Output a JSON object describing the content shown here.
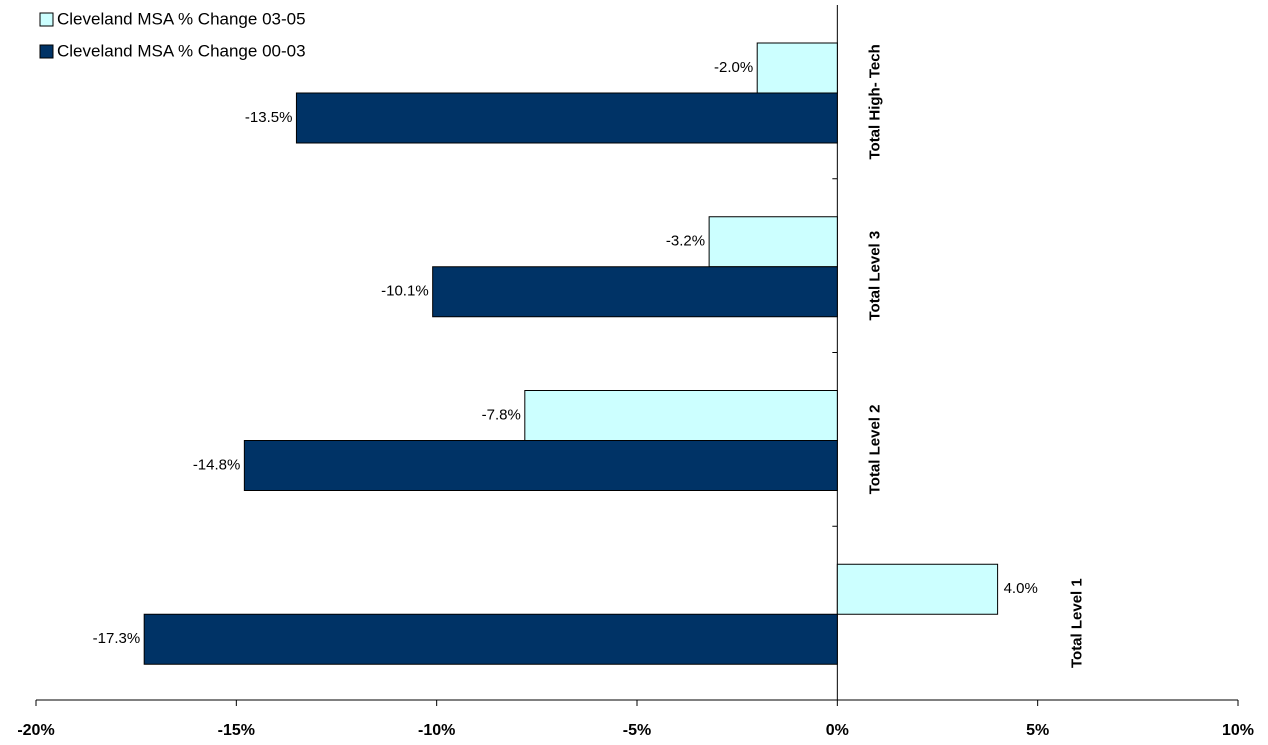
{
  "chart_data": {
    "type": "bar",
    "orientation": "horizontal",
    "categories": [
      "Total High- Tech",
      "Total Level 3",
      "Total Level 2",
      "Total Level 1"
    ],
    "series": [
      {
        "name": "Cleveland MSA % Change 03-05",
        "color": "#ccffff",
        "values": [
          -2.0,
          -3.2,
          -7.8,
          4.0
        ],
        "value_labels": [
          "-2.0%",
          "-3.2%",
          "-7.8%",
          "4.0%"
        ]
      },
      {
        "name": "Cleveland MSA % Change 00-03",
        "color": "#003366",
        "values": [
          -13.5,
          -10.1,
          -14.8,
          -17.3
        ],
        "value_labels": [
          "-13.5%",
          "-10.1%",
          "-14.8%",
          "-17.3%"
        ]
      }
    ],
    "xlim": [
      -20,
      10
    ],
    "xticks": [
      {
        "value": -20,
        "label": "-20%"
      },
      {
        "value": -15,
        "label": "-15%"
      },
      {
        "value": -10,
        "label": "-10%"
      },
      {
        "value": -5,
        "label": "-5%"
      },
      {
        "value": 0,
        "label": "0%"
      },
      {
        "value": 5,
        "label": "5%"
      },
      {
        "value": 10,
        "label": "10%"
      }
    ],
    "legend": "top-left"
  }
}
